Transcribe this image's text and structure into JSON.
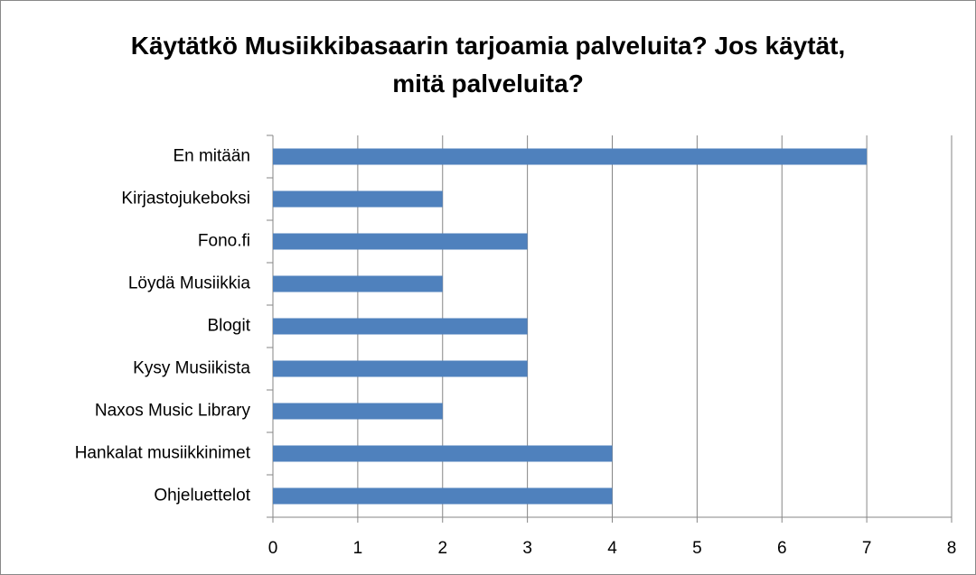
{
  "chart_data": {
    "type": "bar",
    "orientation": "horizontal",
    "title": "Käytätkö Musiikkibasaarin tarjoamia palveluita? Jos käytät, mitä palveluita?",
    "categories": [
      "En mitään",
      "Kirjastojukeboksi",
      "Fono.fi",
      "Löydä Musiikkia",
      "Blogit",
      "Kysy Musiikista",
      "Naxos Music Library",
      "Hankalat musiikkinimet",
      "Ohjeluettelot"
    ],
    "values": [
      7,
      2,
      3,
      2,
      3,
      3,
      2,
      4,
      4
    ],
    "color": "#4f81bd",
    "xlim": [
      0,
      8
    ],
    "xticks": [
      0,
      1,
      2,
      3,
      4,
      5,
      6,
      7,
      8
    ],
    "grid": true
  }
}
